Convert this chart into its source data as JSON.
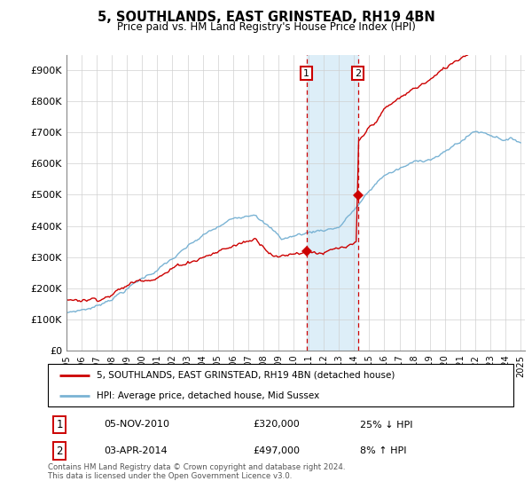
{
  "title": "5, SOUTHLANDS, EAST GRINSTEAD, RH19 4BN",
  "subtitle": "Price paid vs. HM Land Registry's House Price Index (HPI)",
  "legend_line1": "5, SOUTHLANDS, EAST GRINSTEAD, RH19 4BN (detached house)",
  "legend_line2": "HPI: Average price, detached house, Mid Sussex",
  "footnote": "Contains HM Land Registry data © Crown copyright and database right 2024.\nThis data is licensed under the Open Government Licence v3.0.",
  "transaction1_date": "05-NOV-2010",
  "transaction1_price": "£320,000",
  "transaction1_hpi": "25% ↓ HPI",
  "transaction2_date": "03-APR-2014",
  "transaction2_price": "£497,000",
  "transaction2_hpi": "8% ↑ HPI",
  "hpi_color": "#7ab3d4",
  "price_color": "#cc0000",
  "shaded_color": "#ddeef8",
  "vline_color": "#cc0000",
  "ylim": [
    0,
    950000
  ],
  "yticks": [
    0,
    100000,
    200000,
    300000,
    400000,
    500000,
    600000,
    700000,
    800000,
    900000
  ],
  "start_year": 1995,
  "end_year": 2025,
  "sale1_year": 2010.85,
  "sale1_price": 320000,
  "sale2_year": 2014.25,
  "sale2_price": 497000
}
